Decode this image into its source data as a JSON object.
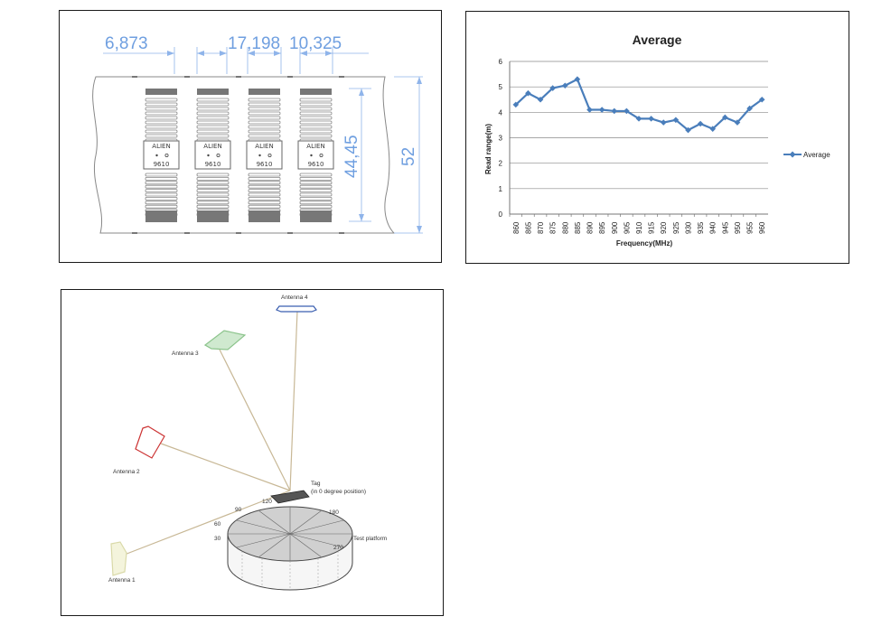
{
  "tags_panel": {
    "dimensions": {
      "pitch_1": "6,873",
      "pitch_2": "17,198",
      "pitch_3": "10,325",
      "antenna_height": "44,45",
      "web_height": "52"
    },
    "chip_brand": "ALIEN",
    "chip_model": "9610"
  },
  "chart_panel": {
    "chart_data": {
      "type": "line",
      "title": "Average",
      "xlabel": "Frequency(MHz)",
      "ylabel": "Read range(m)",
      "ylim": [
        0,
        6
      ],
      "yticks": [
        0,
        1,
        2,
        3,
        4,
        5,
        6
      ],
      "grid": true,
      "legend_position": "right",
      "categories": [
        "860",
        "865",
        "870",
        "875",
        "880",
        "885",
        "890",
        "895",
        "900",
        "905",
        "910",
        "915",
        "920",
        "925",
        "930",
        "935",
        "940",
        "945",
        "950",
        "955",
        "960"
      ],
      "series": [
        {
          "name": "Average",
          "color": "#4a7ebb",
          "values": [
            4.3,
            4.75,
            4.5,
            4.95,
            5.05,
            5.3,
            4.1,
            4.1,
            4.05,
            4.05,
            3.75,
            3.75,
            3.6,
            3.7,
            3.3,
            3.55,
            3.35,
            3.8,
            3.6,
            4.15,
            4.5
          ]
        }
      ]
    }
  },
  "setup_panel": {
    "antenna_1": "Antenna 1",
    "antenna_2": "Antenna 2",
    "antenna_3": "Antenna 3",
    "antenna_4": "Antenna 4",
    "tag_label_line1": "Tag",
    "tag_label_line2": "(in 0 degree position)",
    "platform_label": "Test platform",
    "angles": [
      "30",
      "60",
      "90",
      "120",
      "180",
      "270"
    ]
  }
}
